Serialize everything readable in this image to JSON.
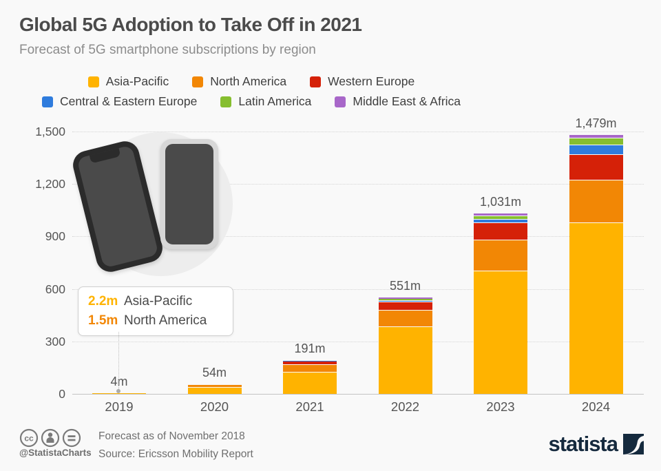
{
  "title": "Global 5G Adoption to Take Off in 2021",
  "subtitle": "Forecast of 5G smartphone subscriptions by region",
  "colors": {
    "background": "#F9F9F9",
    "asia_pacific": "#FFB300",
    "north_america": "#F28705",
    "western_europe": "#D52108",
    "central_eastern_europe": "#2F7CDD",
    "latin_america": "#86BE2F",
    "middle_east_africa": "#A867C9",
    "statista_navy": "#152A3E"
  },
  "chart_data": {
    "type": "bar",
    "stacked": true,
    "title": "Global 5G Adoption to Take Off in 2021",
    "subtitle": "Forecast of 5G smartphone subscriptions by region",
    "categories": [
      "2019",
      "2020",
      "2021",
      "2022",
      "2023",
      "2024"
    ],
    "series": [
      {
        "name": "Asia-Pacific",
        "color": "#FFB300",
        "values": [
          2.2,
          35,
          124,
          380,
          699,
          975
        ]
      },
      {
        "name": "North America",
        "color": "#F28705",
        "values": [
          1.5,
          16,
          40,
          96,
          180,
          246
        ]
      },
      {
        "name": "Western Europe",
        "color": "#D52108",
        "values": [
          0.2,
          2,
          20,
          46,
          97,
          147
        ]
      },
      {
        "name": "Central & Eastern Europe",
        "color": "#2F7CDD",
        "values": [
          0.05,
          0.5,
          4,
          10,
          21,
          52
        ]
      },
      {
        "name": "Latin America",
        "color": "#86BE2F",
        "values": [
          0.03,
          0.3,
          2,
          10,
          19,
          41
        ]
      },
      {
        "name": "Middle East & Africa",
        "color": "#A867C9",
        "values": [
          0.02,
          0.2,
          1,
          9,
          15,
          18
        ]
      }
    ],
    "totals_labels": [
      "4m",
      "54m",
      "191m",
      "551m",
      "1,031m",
      "1,479m"
    ],
    "totals": [
      4,
      54,
      191,
      551,
      1031,
      1479
    ],
    "yticks": [
      0,
      300,
      600,
      900,
      1200,
      1500
    ],
    "ytick_labels": [
      "0",
      "300",
      "600",
      "900",
      "1,200",
      "1,500"
    ],
    "ylim": [
      0,
      1500
    ],
    "grid": "dotted-horizontal",
    "legend_position": "top",
    "legend_rows": [
      [
        0,
        1,
        2
      ],
      [
        3,
        4,
        5
      ]
    ]
  },
  "annotation": {
    "points_to_category": "2019",
    "rows": [
      {
        "value": "2.2m",
        "label": "Asia-Pacific",
        "color": "#FFB300"
      },
      {
        "value": "1.5m",
        "label": "North America",
        "color": "#F28705"
      }
    ]
  },
  "footer": {
    "handle": "@StatistaCharts",
    "note": "Forecast as of November 2018",
    "source": "Source: Ericsson Mobility Report",
    "logo_text": "statista"
  }
}
